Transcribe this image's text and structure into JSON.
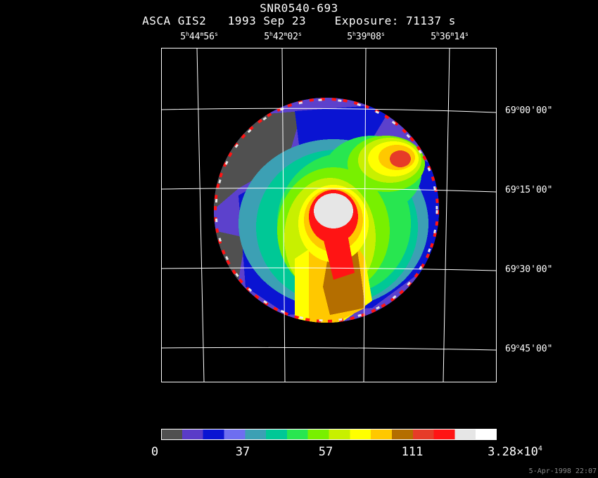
{
  "title": "SNR0540-693",
  "subtitle": "ASCA GIS2   1993 Sep 23    Exposure: 71137 s",
  "ra_labels": [
    {
      "h": "5",
      "hs": "h",
      "m": "44",
      "ms": "m",
      "s": "56",
      "ss": "s"
    },
    {
      "h": "5",
      "hs": "h",
      "m": "42",
      "ms": "m",
      "s": "02",
      "ss": "s"
    },
    {
      "h": "5",
      "hs": "h",
      "m": "39",
      "ms": "m",
      "s": "08",
      "ss": "s"
    },
    {
      "h": "5",
      "hs": "h",
      "m": "36",
      "ms": "m",
      "s": "14",
      "ss": "s"
    }
  ],
  "dec_labels": [
    {
      "d": "69",
      "dm": "o",
      "rest": "00'00\""
    },
    {
      "d": "69",
      "dm": "o",
      "rest": "15'00\""
    },
    {
      "d": "69",
      "dm": "o",
      "rest": "30'00\""
    },
    {
      "d": "69",
      "dm": "o",
      "rest": "45'00\""
    }
  ],
  "colorbar": {
    "colors": [
      "#505050",
      "#5a3cc8",
      "#0a14d2",
      "#6e6ef0",
      "#3ca0b4",
      "#00c896",
      "#28e650",
      "#78f000",
      "#c8f000",
      "#ffff00",
      "#ffc800",
      "#b46e00",
      "#e63c28",
      "#ff1414",
      "#e6e6e6",
      "#ffffff"
    ],
    "labels": [
      "0",
      "37",
      "57",
      "111",
      "3.28×10"
    ],
    "exponent": "4"
  },
  "timestamp": "5-Apr-1998 22:07"
}
